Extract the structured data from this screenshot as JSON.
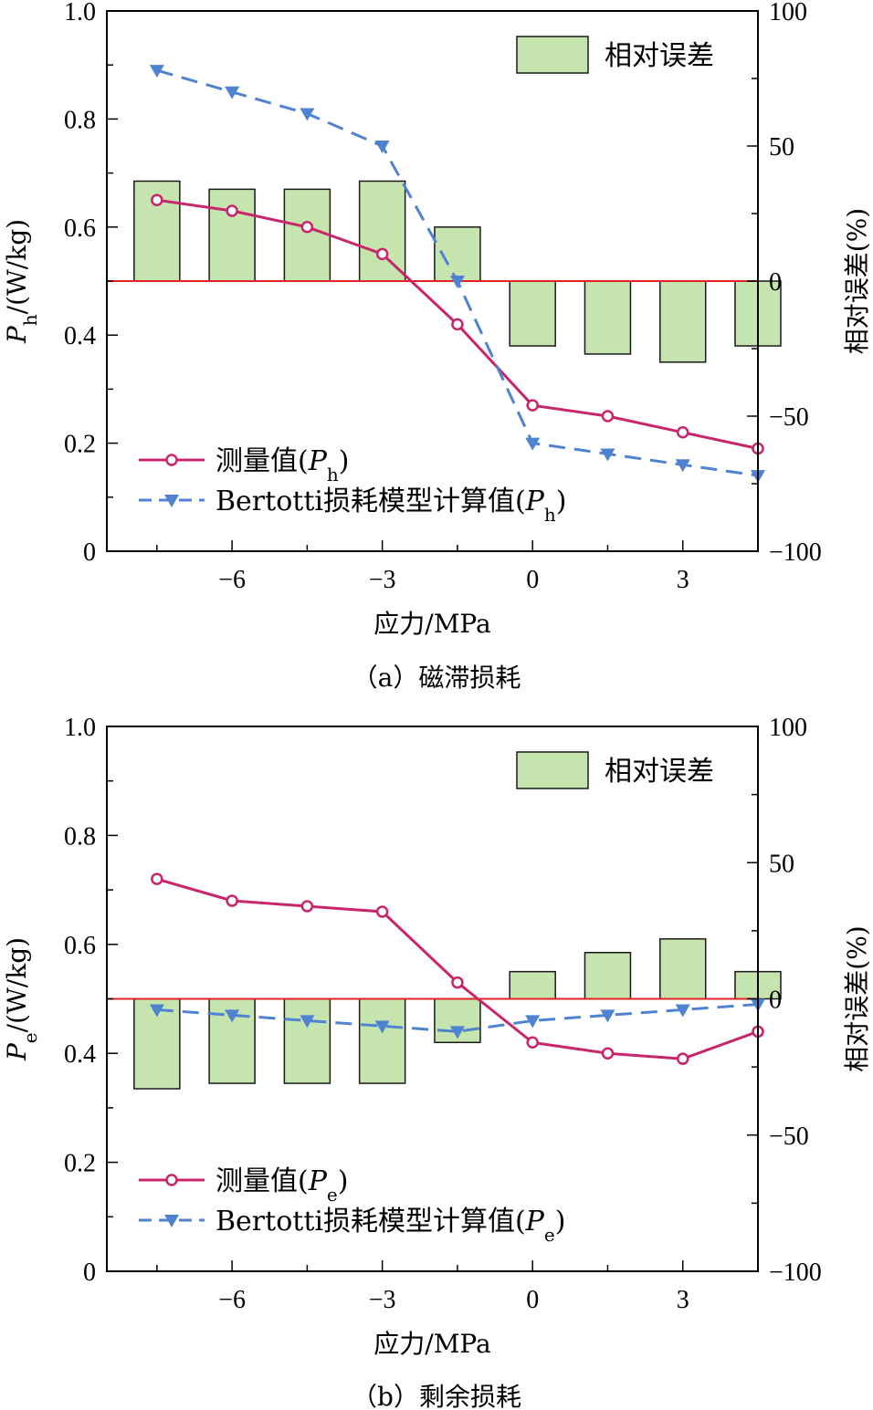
{
  "chart_data": [
    {
      "type": "bar+line",
      "caption": "（a）磁滞损耗",
      "xlabel": "应力/MPa",
      "ylabel_left": {
        "main": "P",
        "sub": "h",
        "rest": "/(W/kg)"
      },
      "ylabel_right": "相对误差(%)",
      "xlim": [
        -8.5,
        4.5
      ],
      "x_ticks": [
        -6,
        -3,
        0,
        3
      ],
      "x_tick_labels": [
        "−6",
        "−3",
        "0",
        "3"
      ],
      "ylim_left": [
        0,
        1.0
      ],
      "y_left_ticks": [
        0,
        0.2,
        0.4,
        0.6,
        0.8,
        1.0
      ],
      "y_left_tick_labels": [
        "0",
        "0.2",
        "0.4",
        "0.6",
        "0.8",
        "1.0"
      ],
      "ylim_right": [
        -100,
        100
      ],
      "y_right_ticks": [
        -100,
        -50,
        0,
        50,
        100
      ],
      "y_right_tick_labels": [
        "−100",
        "−50",
        "0",
        "50",
        "100"
      ],
      "x": [
        -7.5,
        -6,
        -4.5,
        -3,
        -1.5,
        0,
        1.5,
        3,
        4.5
      ],
      "bar_series": {
        "name": "相对误差",
        "axis": "right",
        "values": [
          37,
          34,
          34,
          37,
          20,
          -24,
          -27,
          -30,
          -24
        ]
      },
      "line_series": [
        {
          "name_main": "测量值(",
          "name_var": "P",
          "name_sub": "h",
          "name_end": ")",
          "style": "measured",
          "values": [
            0.65,
            0.63,
            0.6,
            0.55,
            0.42,
            0.27,
            0.25,
            0.22,
            0.19
          ]
        },
        {
          "name_main": "Bertotti损耗模型计算值(",
          "name_var": "P",
          "name_sub": "h",
          "name_end": ")",
          "style": "model",
          "values": [
            0.89,
            0.85,
            0.81,
            0.75,
            0.5,
            0.2,
            0.18,
            0.16,
            0.14
          ]
        }
      ],
      "legend_bar_position": "top-right",
      "legend_lines_position": "bottom-left"
    },
    {
      "type": "bar+line",
      "caption": "（b）剩余损耗",
      "xlabel": "应力/MPa",
      "ylabel_left": {
        "main": "P",
        "sub": "e",
        "rest": "/(W/kg)"
      },
      "ylabel_right": "相对误差(%)",
      "xlim": [
        -8.5,
        4.5
      ],
      "x_ticks": [
        -6,
        -3,
        0,
        3
      ],
      "x_tick_labels": [
        "−6",
        "−3",
        "0",
        "3"
      ],
      "ylim_left": [
        0,
        1.0
      ],
      "y_left_ticks": [
        0,
        0.2,
        0.4,
        0.6,
        0.8,
        1.0
      ],
      "y_left_tick_labels": [
        "0",
        "0.2",
        "0.4",
        "0.6",
        "0.8",
        "1.0"
      ],
      "ylim_right": [
        -100,
        100
      ],
      "y_right_ticks": [
        -100,
        -50,
        0,
        50,
        100
      ],
      "y_right_tick_labels": [
        "−100",
        "−50",
        "0",
        "50",
        "100"
      ],
      "x": [
        -7.5,
        -6,
        -4.5,
        -3,
        -1.5,
        0,
        1.5,
        3,
        4.5
      ],
      "bar_series": {
        "name": "相对误差",
        "axis": "right",
        "values": [
          -33,
          -31,
          -31,
          -31,
          -16,
          10,
          17,
          22,
          10
        ]
      },
      "line_series": [
        {
          "name_main": "测量值(",
          "name_var": "P",
          "name_sub": "e",
          "name_end": ")",
          "style": "measured",
          "values": [
            0.72,
            0.68,
            0.67,
            0.66,
            0.53,
            0.42,
            0.4,
            0.39,
            0.44
          ]
        },
        {
          "name_main": "Bertotti损耗模型计算值(",
          "name_var": "P",
          "name_sub": "e",
          "name_end": ")",
          "style": "model",
          "values": [
            0.48,
            0.47,
            0.46,
            0.45,
            0.44,
            0.46,
            0.47,
            0.48,
            0.49
          ]
        }
      ],
      "legend_bar_position": "top-right",
      "legend_lines_position": "bottom-left"
    }
  ],
  "colors": {
    "bar_fill": "#c6e5ae",
    "bar_stroke": "#1a1a1a",
    "measured_line": "#c8256b",
    "model_line": "#4f82d0",
    "zero_line": "#e02424"
  }
}
